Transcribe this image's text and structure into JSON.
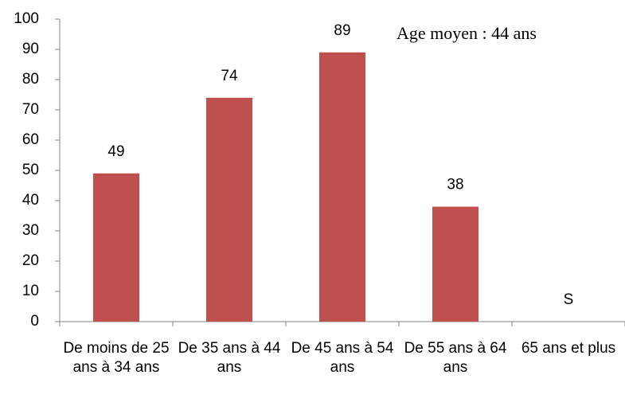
{
  "chart_data": {
    "type": "bar",
    "annotation": "Age moyen : 44 ans",
    "categories": [
      "De moins de 25 ans à 34 ans",
      "De 35 ans à 44 ans",
      "De 45 ans à 54 ans",
      "De 55 ans à 64 ans",
      "65 ans et plus"
    ],
    "values": [
      49,
      74,
      89,
      38,
      null
    ],
    "value_labels": [
      "49",
      "74",
      "89",
      "38",
      "S"
    ],
    "color": "#c0504d",
    "ylim": [
      0,
      100
    ],
    "yticks": [
      0,
      10,
      20,
      30,
      40,
      50,
      60,
      70,
      80,
      90,
      100
    ],
    "grid": false
  }
}
